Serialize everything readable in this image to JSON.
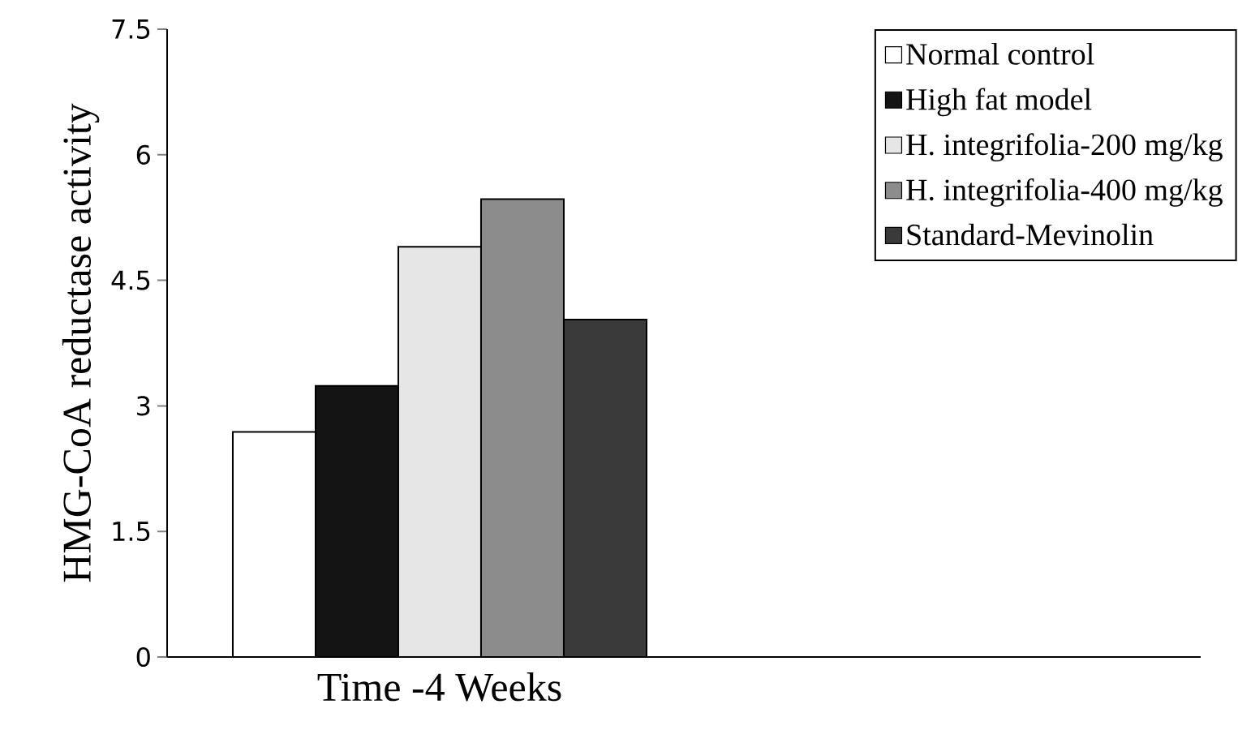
{
  "chart_data": {
    "type": "bar",
    "categories": [
      null
    ],
    "xlabel": "Time -4 Weeks",
    "ylabel": "HMG-CoA reductase activity",
    "ylim": [
      0,
      7.5
    ],
    "yticks": [
      0,
      1.5,
      3,
      4.5,
      6,
      7.5
    ],
    "legend": "top right",
    "grid": false,
    "series": [
      {
        "name": "Normal control",
        "color": "#ffffff",
        "values": [
          2.69
        ]
      },
      {
        "name": "High fat model",
        "color": "#141414",
        "values": [
          3.24
        ]
      },
      {
        "name": "H. integrifolia-200 mg/kg",
        "color": "#e6e6e6",
        "values": [
          4.9
        ]
      },
      {
        "name": "H. integrifolia-400 mg/kg",
        "color": "#8c8c8c",
        "values": [
          5.47
        ]
      },
      {
        "name": "Standard-Mevinolin",
        "color": "#3a3a3a",
        "values": [
          4.03
        ]
      }
    ]
  }
}
